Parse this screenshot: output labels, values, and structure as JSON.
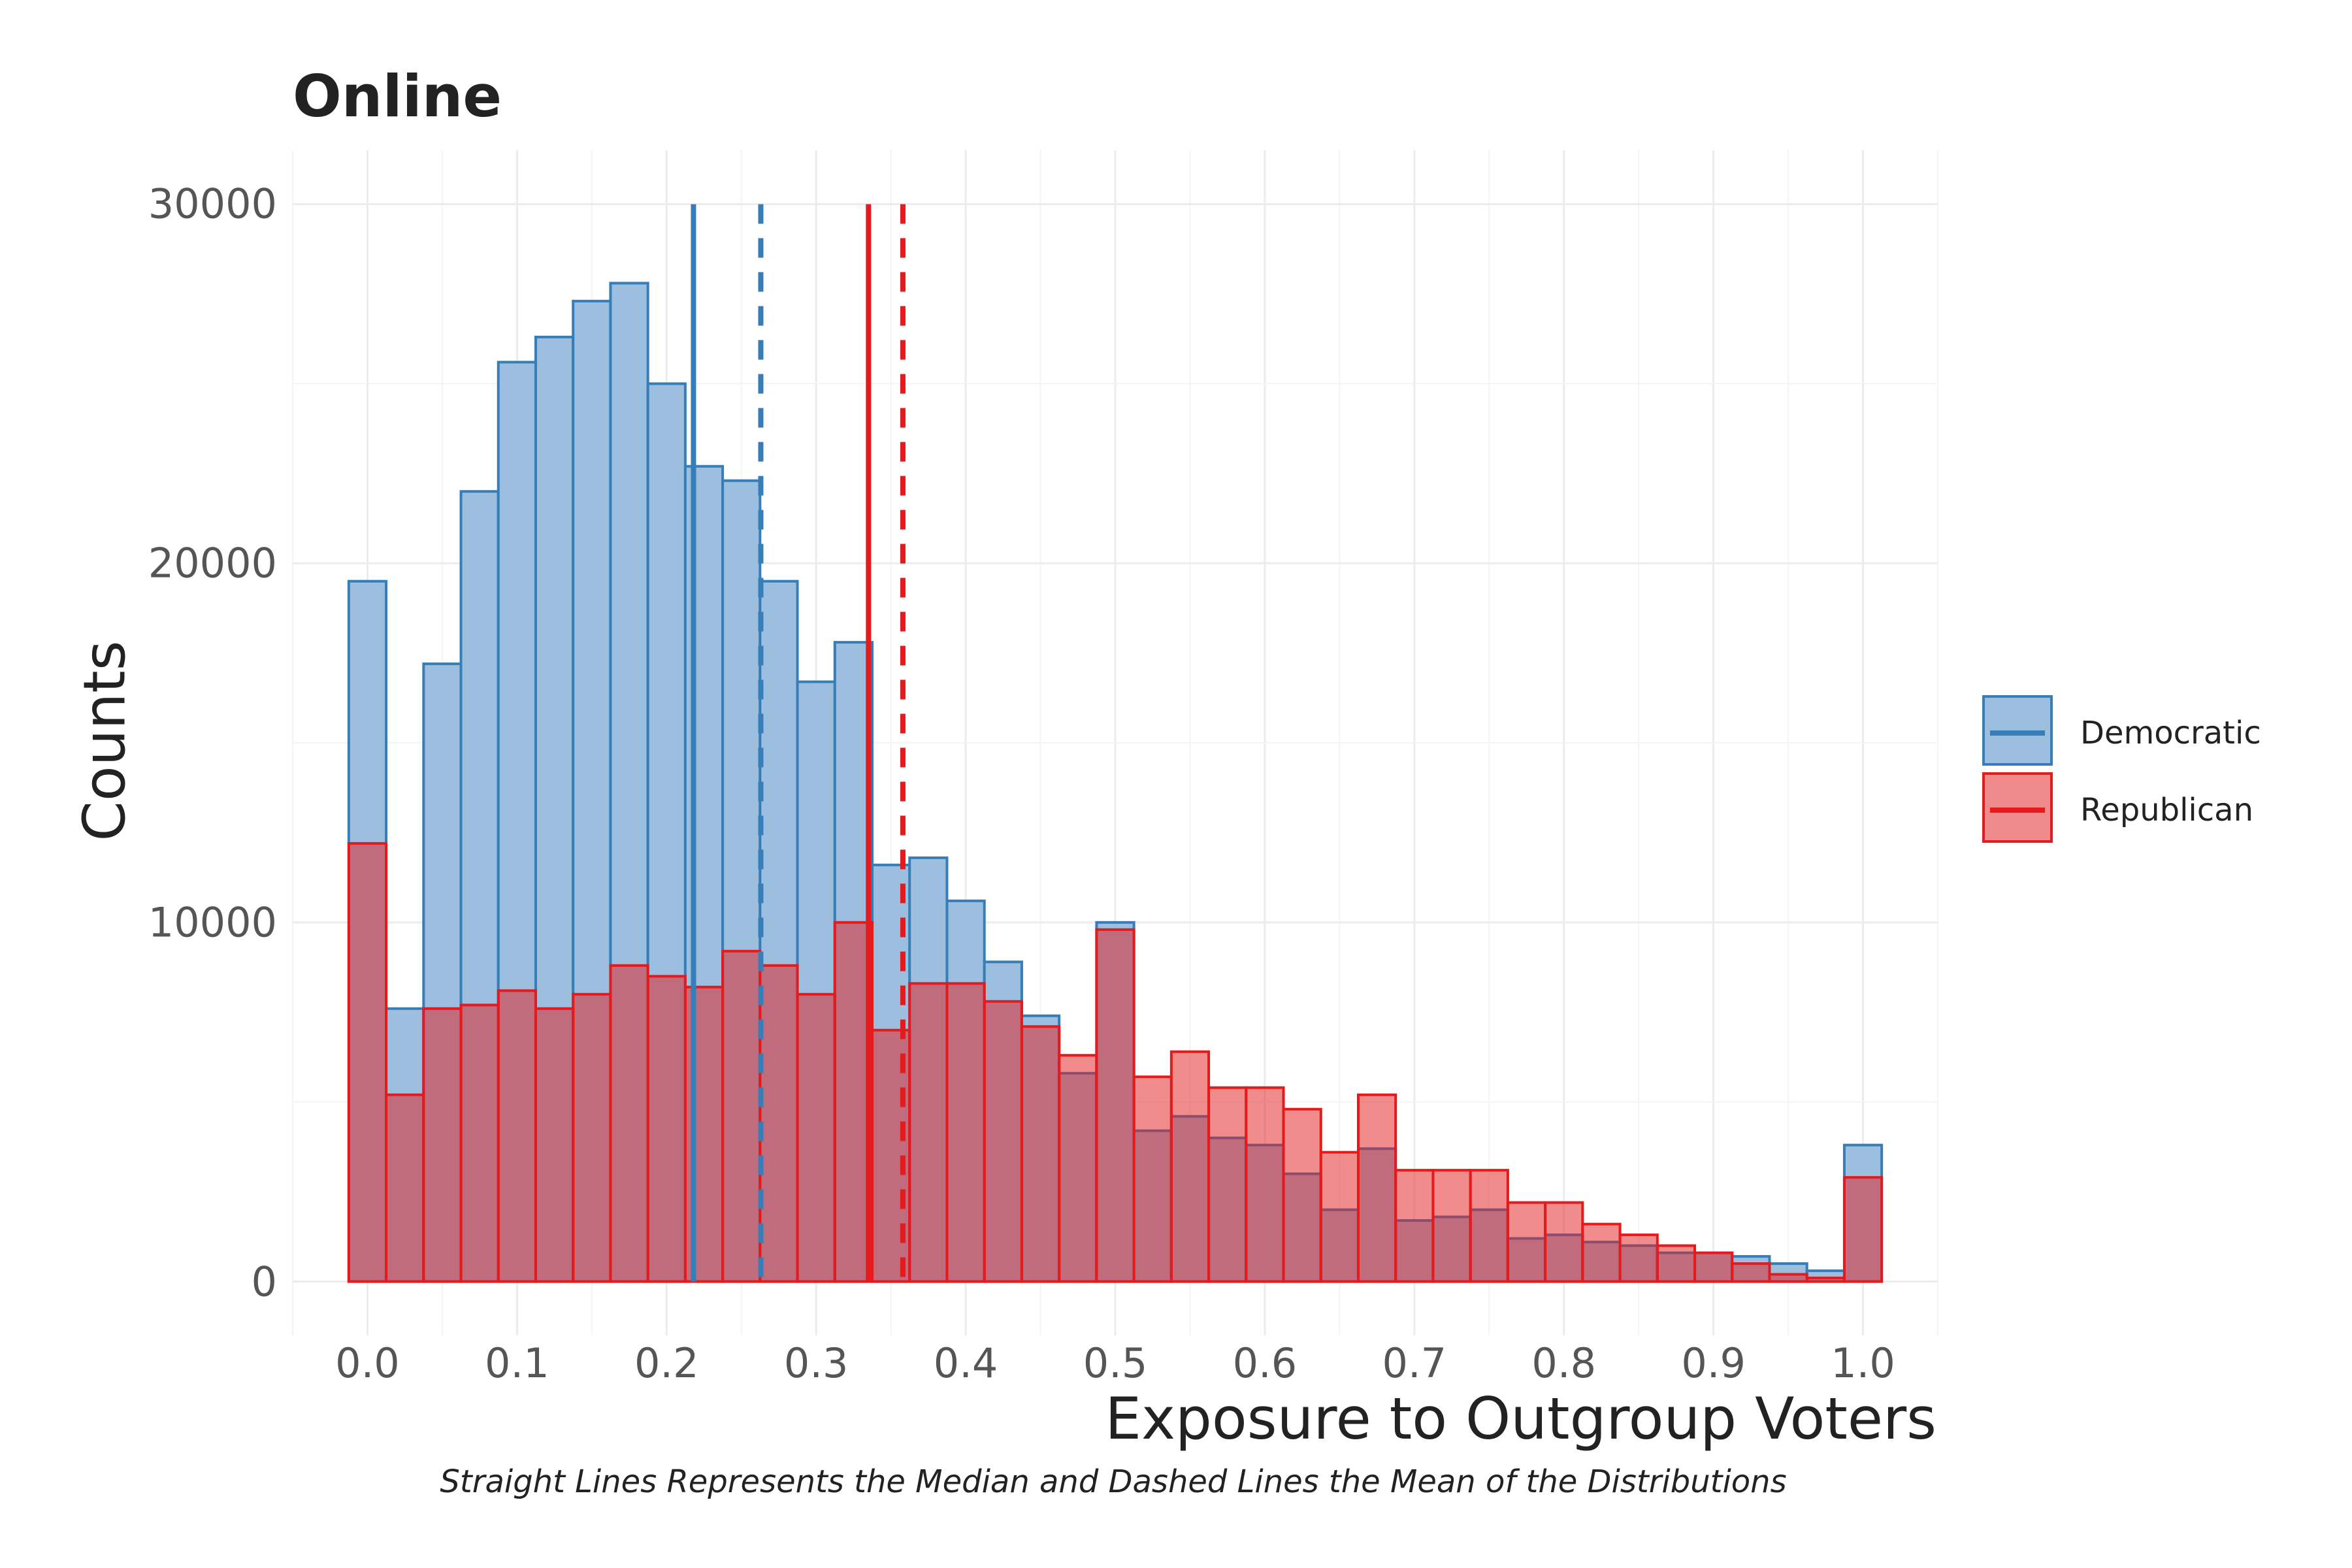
{
  "chart_data": {
    "type": "bar",
    "title": "Online",
    "xlabel": "Exposure to Outgroup Voters",
    "ylabel": "Counts",
    "caption": "Straight Lines Represents the Median and Dashed Lines the Mean of the Distributions",
    "xlim": [
      -0.05,
      1.05
    ],
    "ylim": [
      -1500,
      31500
    ],
    "x_ticks": [
      "0.0",
      "0.1",
      "0.2",
      "0.3",
      "0.4",
      "0.5",
      "0.6",
      "0.7",
      "0.8",
      "0.9",
      "1.0"
    ],
    "x_tick_values": [
      0.0,
      0.1,
      0.2,
      0.3,
      0.4,
      0.5,
      0.6,
      0.7,
      0.8,
      0.9,
      1.0
    ],
    "y_ticks": [
      "0",
      "10000",
      "20000",
      "30000"
    ],
    "y_tick_values": [
      0,
      10000,
      20000,
      30000
    ],
    "grid": true,
    "legend_position": "right",
    "bin_width": 0.025,
    "bin_centers": [
      0.0,
      0.025,
      0.05,
      0.075,
      0.1,
      0.125,
      0.15,
      0.175,
      0.2,
      0.225,
      0.25,
      0.275,
      0.3,
      0.325,
      0.35,
      0.375,
      0.4,
      0.425,
      0.45,
      0.475,
      0.5,
      0.525,
      0.55,
      0.575,
      0.6,
      0.625,
      0.65,
      0.675,
      0.7,
      0.725,
      0.75,
      0.775,
      0.8,
      0.825,
      0.85,
      0.875,
      0.9,
      0.925,
      0.95,
      0.975,
      1.0
    ],
    "series": [
      {
        "name": "Democratic",
        "color": "#377eb8",
        "fill": "#9dbfdf",
        "values": [
          19500,
          7600,
          17200,
          22000,
          25600,
          26300,
          27300,
          27800,
          25000,
          22700,
          22300,
          19500,
          16700,
          17800,
          11600,
          11800,
          10600,
          8900,
          7400,
          5800,
          10000,
          4200,
          4600,
          4000,
          3800,
          3000,
          2000,
          3700,
          1700,
          1800,
          2000,
          1200,
          1300,
          1100,
          1000,
          800,
          800,
          700,
          500,
          300,
          3800
        ],
        "median": 0.218,
        "mean": 0.263
      },
      {
        "name": "Republican",
        "color": "#e41a1c",
        "fill": "#f08a8b",
        "values": [
          12200,
          5200,
          7600,
          7700,
          8100,
          7600,
          8000,
          8800,
          8500,
          8200,
          9200,
          8800,
          8000,
          10000,
          7000,
          8300,
          8300,
          7800,
          7100,
          6300,
          9800,
          5700,
          6400,
          5400,
          5400,
          4800,
          3600,
          5200,
          3100,
          3100,
          3100,
          2200,
          2200,
          1600,
          1300,
          1000,
          800,
          500,
          200,
          100,
          2900
        ],
        "median": 0.335,
        "mean": 0.358
      }
    ]
  }
}
